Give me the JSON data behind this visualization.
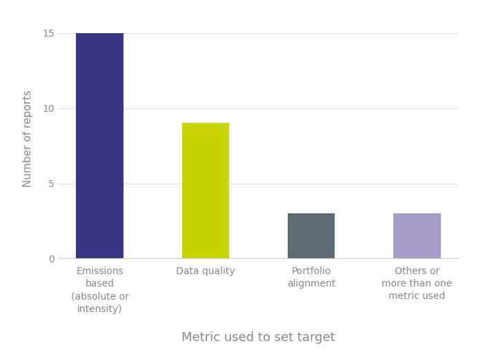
{
  "categories": [
    "Emissions\nbased\n(absolute or\nintensity)",
    "Data quality",
    "Portfolio\nalignment",
    "Others or\nmore than one\nmetric used"
  ],
  "values": [
    15,
    9,
    3,
    3
  ],
  "bar_colors": [
    "#3b3680",
    "#c8d400",
    "#5c6b73",
    "#a89cc8"
  ],
  "xlabel": "Metric used to set target",
  "ylabel": "Number of reports",
  "ylim": [
    0,
    16
  ],
  "yticks": [
    0,
    5,
    10,
    15
  ],
  "background_color": "#ffffff",
  "xlabel_fontsize": 13,
  "ylabel_fontsize": 11,
  "tick_label_color": "#888888",
  "axis_label_color": "#888888",
  "tick_fontsize": 10,
  "bar_width": 0.45,
  "grid_color": "#dddddd"
}
